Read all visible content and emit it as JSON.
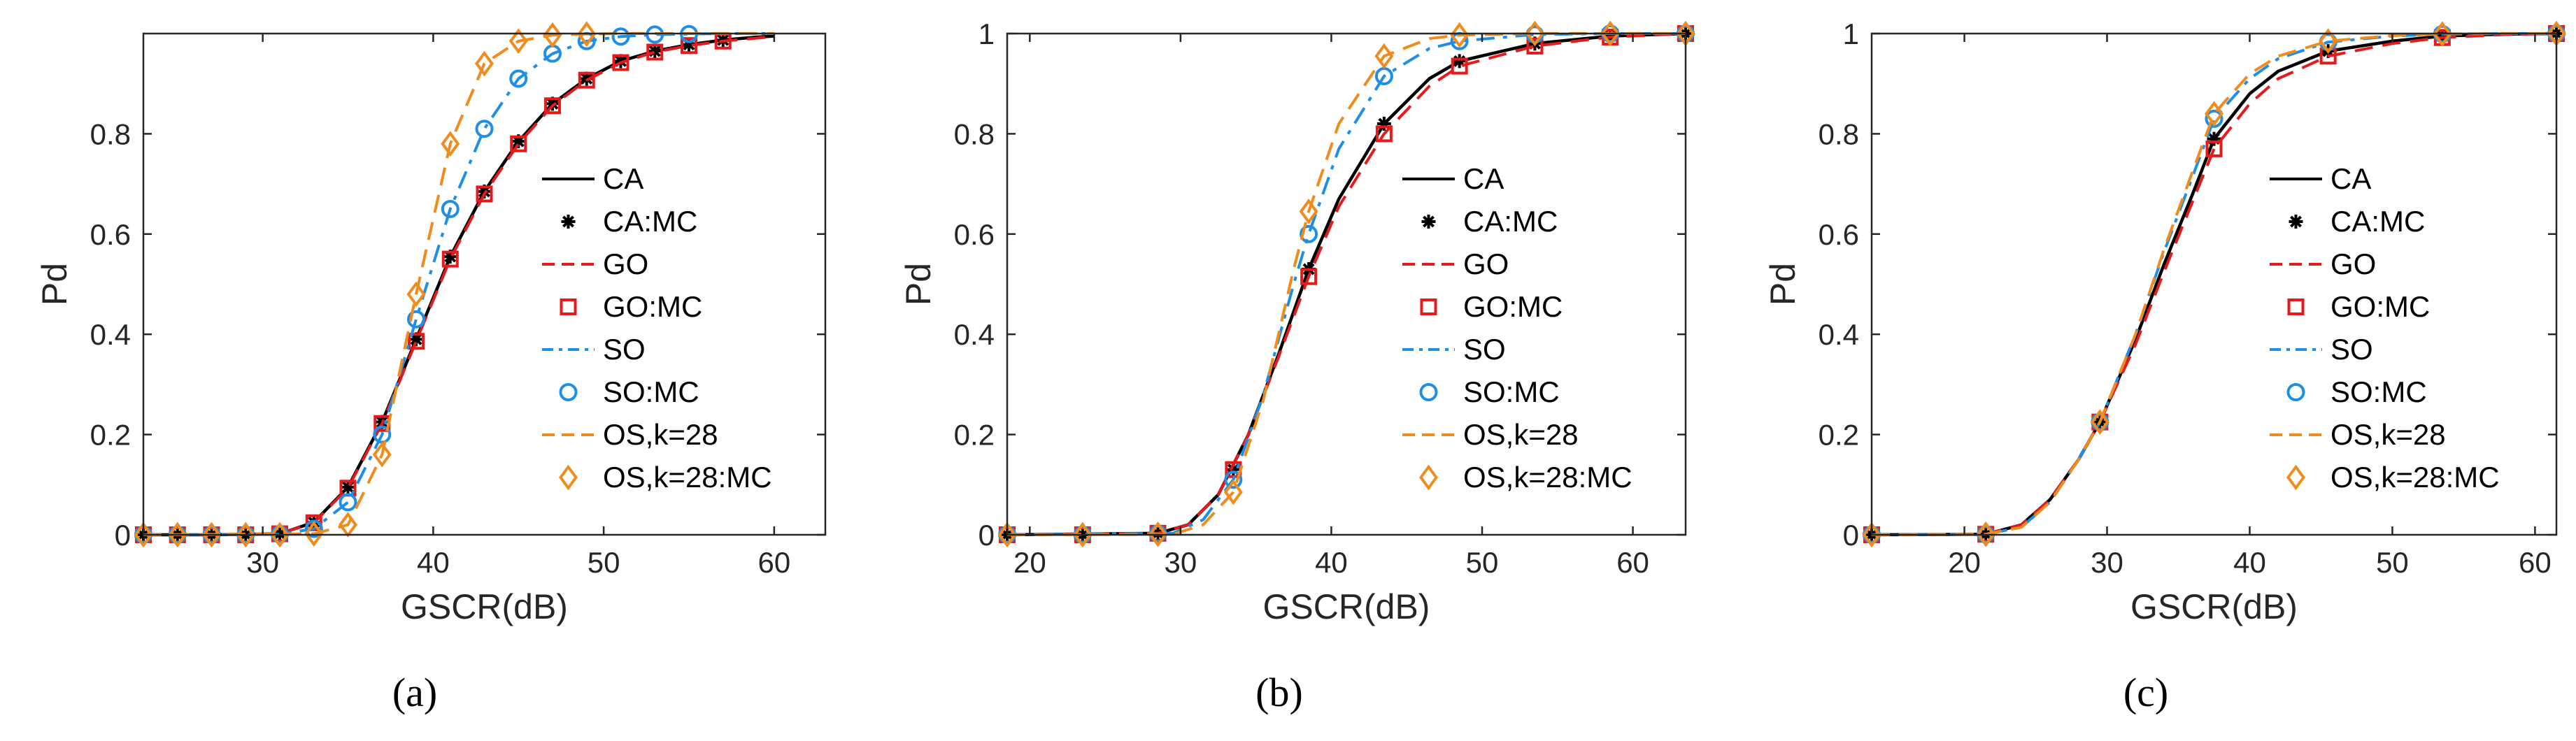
{
  "figure": {
    "captions": [
      "(a)",
      "(b)",
      "(c)"
    ]
  },
  "colors": {
    "CA": "#000000",
    "GO": "#e41a1c",
    "SO": "#1f8fe6",
    "OS": "#f08b1d",
    "axis": "#262626"
  },
  "chart_data": [
    {
      "type": "line",
      "panel": "(a)",
      "xlabel": "GSCR(dB)",
      "ylabel": "Pd",
      "xlim": [
        23,
        63
      ],
      "ylim": [
        0,
        1
      ],
      "xticks": [
        30,
        40,
        50,
        60
      ],
      "yticks": [
        0,
        0.2,
        0.4,
        0.6,
        0.8
      ],
      "legend": [
        "CA",
        "CA:MC",
        "GO",
        "GO:MC",
        "SO",
        "SO:MC",
        "OS,k=28",
        "OS,k=28:MC"
      ],
      "legend_position": "right",
      "series": [
        {
          "name": "CA",
          "style": "solid",
          "key": "CA",
          "x": [
            23,
            27,
            31,
            33,
            35,
            37,
            39,
            41,
            43,
            45,
            47,
            49,
            51,
            53,
            55,
            57,
            59,
            60
          ],
          "y": [
            0,
            0,
            0.002,
            0.025,
            0.095,
            0.225,
            0.39,
            0.555,
            0.685,
            0.785,
            0.86,
            0.91,
            0.945,
            0.965,
            0.978,
            0.987,
            0.993,
            0.995
          ]
        },
        {
          "name": "CA:MC",
          "marker": "star",
          "key": "CA",
          "x": [
            23,
            25,
            27,
            29,
            31,
            33,
            35,
            37,
            39,
            41,
            43,
            45,
            47,
            49,
            51,
            53,
            55,
            57
          ],
          "y": [
            0,
            0,
            0,
            0,
            0.002,
            0.025,
            0.095,
            0.225,
            0.39,
            0.555,
            0.685,
            0.785,
            0.86,
            0.91,
            0.945,
            0.965,
            0.978,
            0.987
          ]
        },
        {
          "name": "GO",
          "style": "dash",
          "key": "GO",
          "x": [
            23,
            27,
            31,
            33,
            35,
            37,
            39,
            41,
            43,
            45,
            47,
            49,
            51,
            53,
            55,
            57,
            59,
            60
          ],
          "y": [
            0,
            0,
            0.002,
            0.024,
            0.093,
            0.222,
            0.386,
            0.55,
            0.68,
            0.78,
            0.856,
            0.907,
            0.942,
            0.963,
            0.976,
            0.985,
            0.991,
            0.994
          ]
        },
        {
          "name": "GO:MC",
          "marker": "square",
          "key": "GO",
          "x": [
            23,
            25,
            27,
            29,
            31,
            33,
            35,
            37,
            39,
            41,
            43,
            45,
            47,
            49,
            51,
            53,
            55,
            57
          ],
          "y": [
            0,
            0,
            0,
            0,
            0.002,
            0.024,
            0.093,
            0.222,
            0.386,
            0.55,
            0.68,
            0.78,
            0.856,
            0.907,
            0.942,
            0.963,
            0.976,
            0.985
          ]
        },
        {
          "name": "SO",
          "style": "dashdot",
          "key": "SO",
          "x": [
            23,
            31,
            33,
            35,
            37,
            39,
            41,
            43,
            45,
            47,
            49,
            51,
            53,
            55,
            57,
            59,
            60
          ],
          "y": [
            0,
            0.001,
            0.012,
            0.065,
            0.2,
            0.43,
            0.65,
            0.81,
            0.91,
            0.96,
            0.985,
            0.994,
            0.998,
            0.999,
            1,
            1,
            1
          ]
        },
        {
          "name": "SO:MC",
          "marker": "circle",
          "key": "SO",
          "x": [
            23,
            25,
            27,
            29,
            31,
            33,
            35,
            37,
            39,
            41,
            43,
            45,
            47,
            49,
            51,
            53,
            55
          ],
          "y": [
            0,
            0,
            0,
            0,
            0.001,
            0.012,
            0.065,
            0.2,
            0.43,
            0.65,
            0.81,
            0.91,
            0.96,
            0.985,
            0.994,
            0.998,
            0.999
          ]
        },
        {
          "name": "OS,k=28",
          "style": "dash",
          "key": "OS",
          "x": [
            23,
            33,
            35,
            37,
            39,
            41,
            43,
            45,
            47,
            49,
            51,
            53,
            55,
            57,
            60
          ],
          "y": [
            0,
            0.002,
            0.02,
            0.16,
            0.48,
            0.78,
            0.94,
            0.985,
            0.997,
            0.999,
            1,
            1,
            1,
            1,
            1
          ]
        },
        {
          "name": "OS,k=28:MC",
          "marker": "diamond",
          "key": "OS",
          "x": [
            23,
            25,
            27,
            29,
            31,
            33,
            35,
            37,
            39,
            41,
            43,
            45,
            47,
            49
          ],
          "y": [
            0,
            0,
            0,
            0,
            0,
            0.002,
            0.02,
            0.16,
            0.48,
            0.78,
            0.94,
            0.985,
            0.997,
            0.999
          ]
        }
      ]
    },
    {
      "type": "line",
      "panel": "(b)",
      "xlabel": "GSCR(dB)",
      "ylabel": "Pd",
      "xlim": [
        18.5,
        63.5
      ],
      "ylim": [
        0,
        1
      ],
      "xticks": [
        20,
        30,
        40,
        50,
        60
      ],
      "yticks": [
        0,
        0.2,
        0.4,
        0.6,
        0.8,
        1
      ],
      "legend": [
        "CA",
        "CA:MC",
        "GO",
        "GO:MC",
        "SO",
        "SO:MC",
        "OS,k=28",
        "OS,k=28:MC"
      ],
      "legend_position": "right",
      "series": [
        {
          "name": "CA",
          "style": "solid",
          "key": "CA",
          "x": [
            18.5,
            28.5,
            30.5,
            32.5,
            34.5,
            36.5,
            38.5,
            40.5,
            43.5,
            46.5,
            48.5,
            53.5,
            58.5,
            63.5
          ],
          "y": [
            0,
            0.003,
            0.02,
            0.08,
            0.2,
            0.36,
            0.53,
            0.67,
            0.82,
            0.91,
            0.945,
            0.98,
            0.995,
            1
          ]
        },
        {
          "name": "CA:MC",
          "marker": "star",
          "key": "CA",
          "x": [
            18.5,
            23.5,
            28.5,
            33.5,
            38.5,
            43.5,
            48.5,
            53.5,
            58.5,
            63.5
          ],
          "y": [
            0,
            0,
            0.003,
            0.13,
            0.53,
            0.82,
            0.945,
            0.98,
            0.995,
            1
          ]
        },
        {
          "name": "GO",
          "style": "dash",
          "key": "GO",
          "x": [
            18.5,
            28.5,
            30.5,
            32.5,
            34.5,
            36.5,
            38.5,
            40.5,
            43.5,
            46.5,
            48.5,
            53.5,
            58.5,
            63.5
          ],
          "y": [
            0,
            0.003,
            0.02,
            0.08,
            0.2,
            0.355,
            0.515,
            0.655,
            0.8,
            0.895,
            0.935,
            0.975,
            0.993,
            1
          ]
        },
        {
          "name": "GO:MC",
          "marker": "square",
          "key": "GO",
          "x": [
            18.5,
            23.5,
            28.5,
            33.5,
            38.5,
            43.5,
            48.5,
            53.5,
            58.5,
            63.5
          ],
          "y": [
            0,
            0,
            0.003,
            0.13,
            0.515,
            0.8,
            0.935,
            0.975,
            0.993,
            1
          ]
        },
        {
          "name": "SO",
          "style": "dashdot",
          "key": "SO",
          "x": [
            18.5,
            29.5,
            31.5,
            33.5,
            35.5,
            37.5,
            38.5,
            40.5,
            43.5,
            46.5,
            48.5,
            53.5,
            58.5,
            63.5
          ],
          "y": [
            0,
            0.003,
            0.03,
            0.11,
            0.28,
            0.5,
            0.6,
            0.77,
            0.915,
            0.97,
            0.985,
            0.998,
            1,
            1
          ]
        },
        {
          "name": "SO:MC",
          "marker": "circle",
          "key": "SO",
          "x": [
            18.5,
            23.5,
            28.5,
            33.5,
            38.5,
            43.5,
            48.5,
            53.5,
            58.5,
            63.5
          ],
          "y": [
            0,
            0,
            0.002,
            0.11,
            0.6,
            0.915,
            0.985,
            0.998,
            1,
            1
          ]
        },
        {
          "name": "OS,k=28",
          "style": "dash",
          "key": "OS",
          "x": [
            18.5,
            29.5,
            31.5,
            33.5,
            35.5,
            37.5,
            38.5,
            40.5,
            43.5,
            46.5,
            48.5,
            53.5,
            63.5
          ],
          "y": [
            0,
            0.001,
            0.02,
            0.085,
            0.27,
            0.53,
            0.645,
            0.82,
            0.955,
            0.99,
            0.997,
            1,
            1
          ]
        },
        {
          "name": "OS,k=28:MC",
          "marker": "diamond",
          "key": "OS",
          "x": [
            18.5,
            23.5,
            28.5,
            33.5,
            38.5,
            43.5,
            48.5,
            53.5,
            58.5,
            63.5
          ],
          "y": [
            0,
            0,
            0.001,
            0.085,
            0.645,
            0.955,
            0.997,
            1,
            1,
            1
          ]
        }
      ]
    },
    {
      "type": "line",
      "panel": "(c)",
      "xlabel": "GSCR(dB)",
      "ylabel": "Pd",
      "xlim": [
        13.5,
        61.5
      ],
      "ylim": [
        0,
        1
      ],
      "xticks": [
        20,
        30,
        40,
        50,
        60
      ],
      "yticks": [
        0,
        0.2,
        0.4,
        0.6,
        0.8,
        1
      ],
      "legend": [
        "CA",
        "CA:MC",
        "GO",
        "GO:MC",
        "SO",
        "SO:MC",
        "OS,k=28",
        "OS,k=28:MC"
      ],
      "legend_position": "right",
      "series": [
        {
          "name": "CA",
          "style": "solid",
          "key": "CA",
          "x": [
            13.5,
            21.5,
            24,
            26,
            28,
            29.5,
            32,
            34,
            36,
            37.5,
            40,
            42,
            45.5,
            50,
            53.5,
            58,
            61.5
          ],
          "y": [
            0,
            0.001,
            0.02,
            0.07,
            0.15,
            0.225,
            0.39,
            0.54,
            0.68,
            0.79,
            0.88,
            0.925,
            0.965,
            0.985,
            0.995,
            0.999,
            1
          ]
        },
        {
          "name": "CA:MC",
          "marker": "star",
          "key": "CA",
          "x": [
            13.5,
            21.5,
            29.5,
            37.5,
            45.5,
            53.5,
            61.5
          ],
          "y": [
            0,
            0.001,
            0.225,
            0.79,
            0.965,
            0.995,
            1
          ]
        },
        {
          "name": "GO",
          "style": "dash",
          "key": "GO",
          "x": [
            13.5,
            21.5,
            24,
            26,
            28,
            29.5,
            32,
            34,
            36,
            37.5,
            40,
            42,
            45.5,
            50,
            53.5,
            58,
            61.5
          ],
          "y": [
            0,
            0.001,
            0.02,
            0.07,
            0.15,
            0.225,
            0.38,
            0.525,
            0.665,
            0.77,
            0.86,
            0.91,
            0.955,
            0.98,
            0.992,
            0.998,
            1
          ]
        },
        {
          "name": "GO:MC",
          "marker": "square",
          "key": "GO",
          "x": [
            13.5,
            21.5,
            29.5,
            37.5,
            45.5,
            53.5,
            61.5
          ],
          "y": [
            0,
            0.001,
            0.225,
            0.77,
            0.955,
            0.992,
            1
          ]
        },
        {
          "name": "SO",
          "style": "dashdot",
          "key": "SO",
          "x": [
            13.5,
            21.5,
            24,
            26,
            28,
            29.5,
            32,
            34,
            36,
            37.5,
            40,
            42,
            45.5,
            50,
            53.5,
            58,
            61.5
          ],
          "y": [
            0,
            0.001,
            0.015,
            0.065,
            0.15,
            0.225,
            0.4,
            0.565,
            0.715,
            0.83,
            0.91,
            0.95,
            0.983,
            0.995,
            0.999,
            1,
            1
          ]
        },
        {
          "name": "SO:MC",
          "marker": "circle",
          "key": "SO",
          "x": [
            13.5,
            21.5,
            29.5,
            37.5,
            45.5,
            53.5,
            61.5
          ],
          "y": [
            0,
            0.001,
            0.225,
            0.83,
            0.983,
            0.999,
            1
          ]
        },
        {
          "name": "OS,k=28",
          "style": "dash",
          "key": "OS",
          "x": [
            13.5,
            21.5,
            24,
            26,
            28,
            29.5,
            32,
            34,
            36,
            37.5,
            40,
            42,
            45.5,
            50,
            53.5,
            58,
            61.5
          ],
          "y": [
            0,
            0.001,
            0.015,
            0.065,
            0.15,
            0.225,
            0.4,
            0.57,
            0.725,
            0.84,
            0.92,
            0.955,
            0.985,
            0.996,
            0.999,
            1,
            1
          ]
        },
        {
          "name": "OS,k=28:MC",
          "marker": "diamond",
          "key": "OS",
          "x": [
            13.5,
            21.5,
            29.5,
            37.5,
            45.5,
            53.5,
            61.5
          ],
          "y": [
            0,
            0.001,
            0.225,
            0.84,
            0.985,
            0.999,
            1
          ]
        }
      ]
    }
  ]
}
